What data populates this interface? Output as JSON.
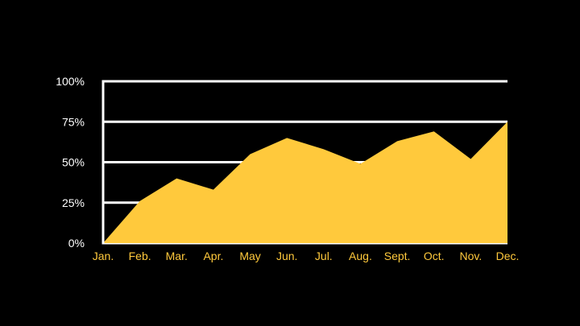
{
  "chart_data": {
    "type": "area",
    "categories": [
      "Jan.",
      "Feb.",
      "Mar.",
      "Apr.",
      "May",
      "Jun.",
      "Jul.",
      "Aug.",
      "Sept.",
      "Oct.",
      "Nov.",
      "Dec."
    ],
    "values": [
      0,
      26,
      40,
      33,
      55,
      65,
      58,
      49,
      63,
      69,
      52,
      75
    ],
    "y_ticks": [
      "0%",
      "25%",
      "50%",
      "75%",
      "100%"
    ],
    "y_tick_values": [
      0,
      25,
      50,
      75,
      100
    ],
    "ylim": [
      0,
      100
    ],
    "title": "",
    "xlabel": "",
    "ylabel": "",
    "grid": true,
    "legend": "none",
    "colors": {
      "background": "#000000",
      "area": "#FFC93C",
      "grid": "#FFFFFF",
      "y_labels": "#FFFFFF",
      "x_labels": "#FFC93C"
    }
  }
}
